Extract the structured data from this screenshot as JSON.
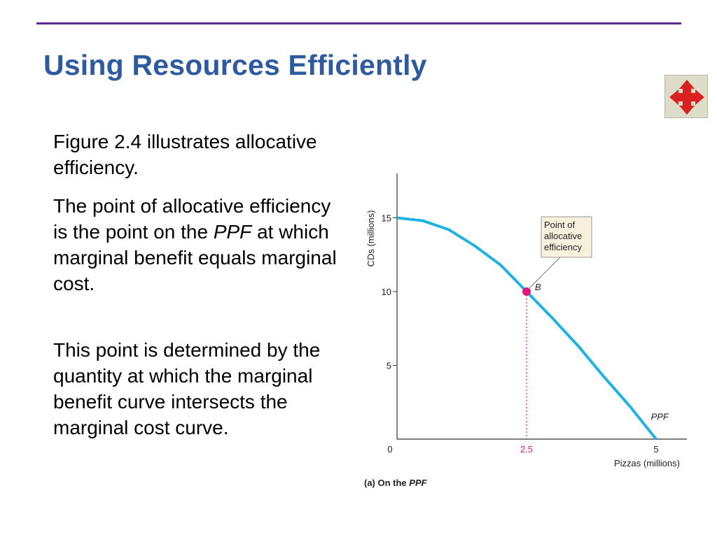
{
  "slide": {
    "title": "Using Resources Efficiently",
    "nav_icon": "four-arrows-move-icon",
    "paragraphs": [
      "Figure 2.4 illustrates allocative efficiency.",
      {
        "before": "The point of allocative efficiency is the point on the ",
        "emph": "PPF",
        "after": " at which marginal benefit equals marginal cost."
      },
      "This point is determined by the quantity at which the marginal benefit curve intersects the marginal cost curve."
    ]
  },
  "colors": {
    "title": "#2e5b9f",
    "rule": "#5b2c8f",
    "curve": "#1fb3e3",
    "point": "#e0177a",
    "callout_bg": "#f7f0dc",
    "nav_arrow": "#d92121"
  },
  "chart_data": {
    "type": "line",
    "caption_prefix": "(a) On the ",
    "caption_emph": "PPF",
    "xlabel": "Pizzas (millions)",
    "ylabel": "CDs (millions)",
    "xlim": [
      0,
      5.2
    ],
    "ylim": [
      0,
      18
    ],
    "xticks": [
      0,
      5
    ],
    "yticks": [
      5,
      10,
      15
    ],
    "highlight_xtick": "2.5",
    "series": [
      {
        "name": "PPF",
        "x": [
          0,
          0.5,
          1,
          1.5,
          2,
          2.5,
          3,
          3.5,
          4,
          4.5,
          5
        ],
        "y": [
          15,
          14.8,
          14.2,
          13.1,
          11.8,
          10,
          8.2,
          6.3,
          4.2,
          2.2,
          0
        ]
      }
    ],
    "point": {
      "label": "B",
      "x": 2.5,
      "y": 10
    },
    "annotation": "Point of allocative efficiency"
  }
}
